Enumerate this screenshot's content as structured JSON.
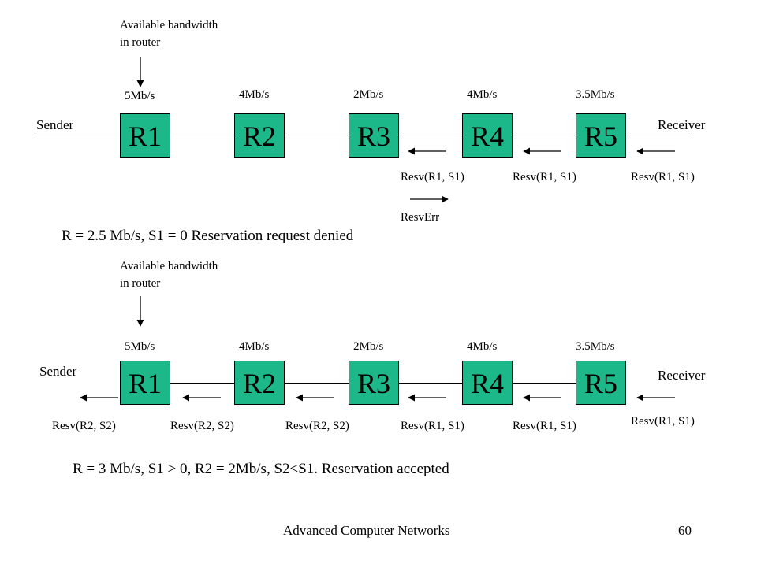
{
  "top": {
    "annotation": [
      "Available bandwidth",
      "in router"
    ],
    "bandwidths": [
      "5Mb/s",
      "4Mb/s",
      "2Mb/s",
      "4Mb/s",
      "3.5Mb/s"
    ],
    "routers": [
      "R1",
      "R2",
      "R3",
      "R4",
      "R5"
    ],
    "sender": "Sender",
    "receiver": "Receiver",
    "resv_labels": [
      "Resv(R1, S1)",
      "Resv(R1, S1)",
      "Resv(R1, S1)"
    ],
    "err_label": "ResvErr",
    "caption": "R = 2.5 Mb/s, S1 = 0 Reservation request denied"
  },
  "bottom": {
    "annotation": [
      "Available bandwidth",
      "in router"
    ],
    "bandwidths": [
      "5Mb/s",
      "4Mb/s",
      "2Mb/s",
      "4Mb/s",
      "3.5Mb/s"
    ],
    "routers": [
      "R1",
      "R2",
      "R3",
      "R4",
      "R5"
    ],
    "sender": "Sender",
    "receiver": "Receiver",
    "resv_labels": [
      "Resv(R2, S2)",
      "Resv(R2, S2)",
      "Resv(R2, S2)",
      "Resv(R1, S1)",
      "Resv(R1, S1)",
      "Resv(R1, S1)"
    ],
    "caption": "R = 3 Mb/s, S1 > 0, R2 = 2Mb/s, S2<S1. Reservation accepted"
  },
  "footer": {
    "title": "Advanced Computer Networks",
    "page": "60"
  }
}
